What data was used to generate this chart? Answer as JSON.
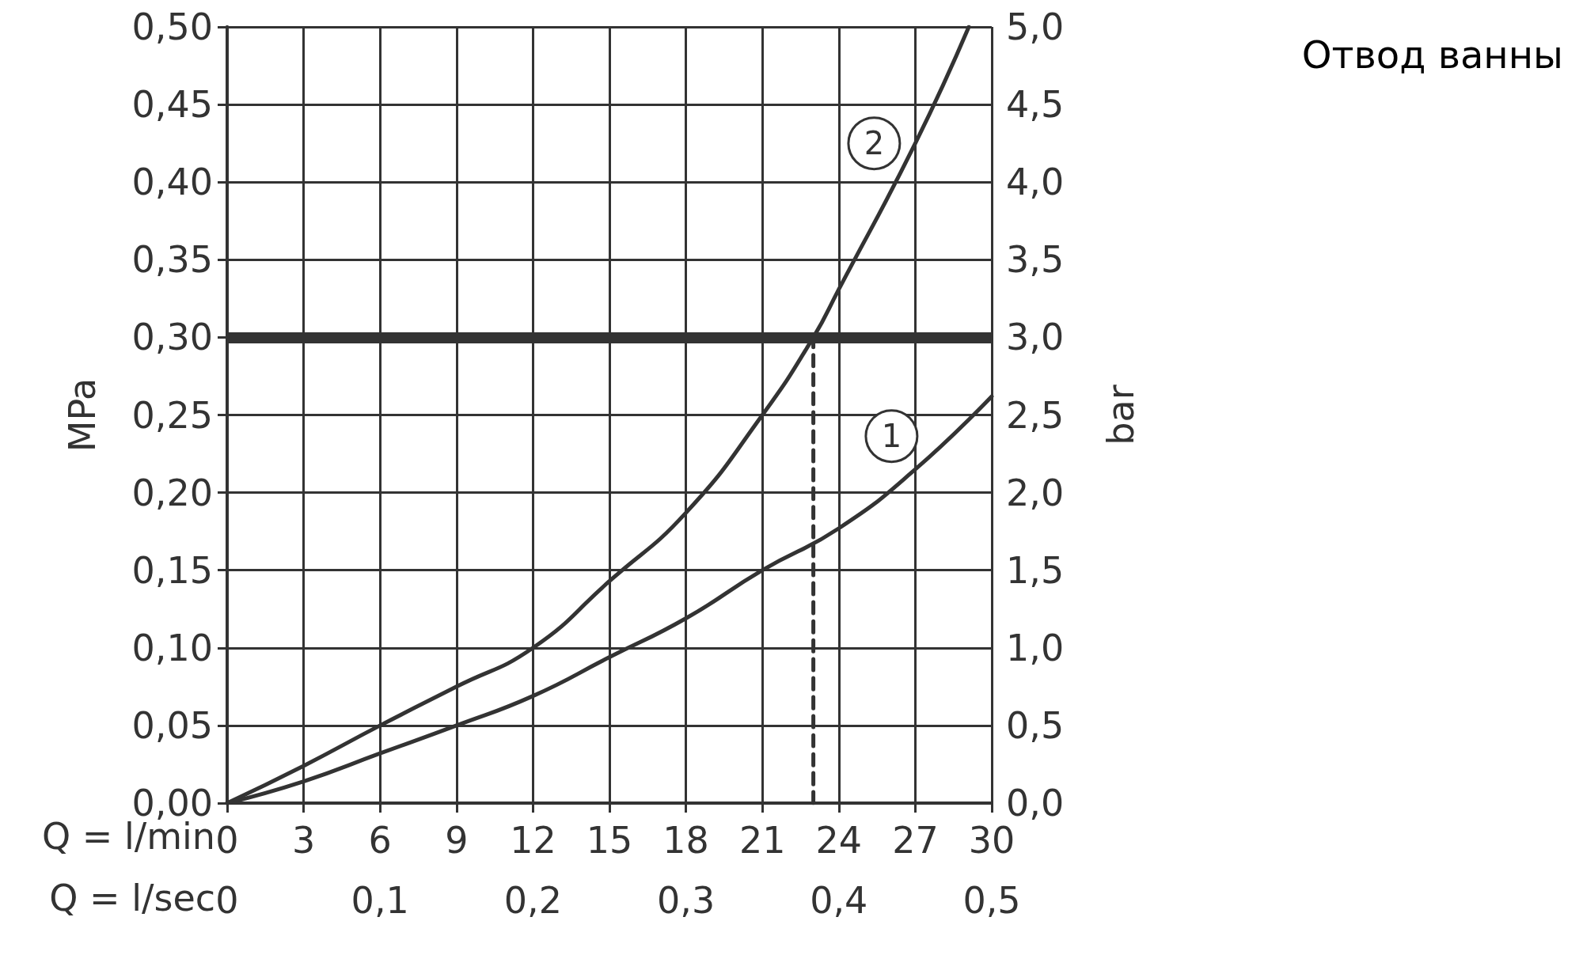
{
  "chart_data": {
    "type": "line",
    "title": "Отвод ванны",
    "xlabel": "Q = l/min",
    "x2label": "Q = l/sec",
    "ylabel": "MPa",
    "y2label": "bar",
    "xlim": [
      0,
      30
    ],
    "xticks": [
      0,
      3,
      6,
      9,
      12,
      15,
      18,
      21,
      24,
      27,
      30
    ],
    "x2lim": [
      0,
      0.5
    ],
    "x2ticks": [
      0,
      {
        "value": 0.1,
        "label": "0,1"
      },
      {
        "value": 0.2,
        "label": "0,2"
      },
      {
        "value": 0.3,
        "label": "0,3"
      },
      {
        "value": 0.4,
        "label": "0,4"
      },
      {
        "value": 0.5,
        "label": "0,5"
      }
    ],
    "ylim": [
      0,
      0.5
    ],
    "yticks": [
      {
        "value": 0,
        "label": "0,00"
      },
      {
        "value": 0.05,
        "label": "0,05"
      },
      {
        "value": 0.1,
        "label": "0,10"
      },
      {
        "value": 0.15,
        "label": "0,15"
      },
      {
        "value": 0.2,
        "label": "0,20"
      },
      {
        "value": 0.25,
        "label": "0,25"
      },
      {
        "value": 0.3,
        "label": "0,30"
      },
      {
        "value": 0.35,
        "label": "0,35"
      },
      {
        "value": 0.4,
        "label": "0,40"
      },
      {
        "value": 0.45,
        "label": "0,45"
      },
      {
        "value": 0.5,
        "label": "0,50"
      }
    ],
    "y2lim": [
      0,
      5
    ],
    "y2ticks": [
      {
        "value": 0,
        "label": "0,0"
      },
      {
        "value": 0.5,
        "label": "0,5"
      },
      {
        "value": 1,
        "label": "1,0"
      },
      {
        "value": 1.5,
        "label": "1,5"
      },
      {
        "value": 2,
        "label": "2,0"
      },
      {
        "value": 2.5,
        "label": "2,5"
      },
      {
        "value": 3,
        "label": "3,0"
      },
      {
        "value": 3.5,
        "label": "3,5"
      },
      {
        "value": 4,
        "label": "4,0"
      },
      {
        "value": 4.5,
        "label": "4,5"
      },
      {
        "value": 5,
        "label": "5,0"
      }
    ],
    "series": [
      {
        "name": "1",
        "color": "#333333",
        "x": [
          0,
          3,
          6,
          9,
          12,
          15,
          18,
          21,
          24,
          27,
          30
        ],
        "values": [
          0,
          0.014,
          0.032,
          0.05,
          0.069,
          0.094,
          0.119,
          0.15,
          0.177,
          0.215,
          0.262
        ]
      },
      {
        "name": "2",
        "color": "#333333",
        "x": [
          0,
          3,
          6,
          9,
          12,
          15,
          18,
          21,
          23,
          24,
          27,
          29.1
        ],
        "values": [
          0,
          0.024,
          0.05,
          0.075,
          0.1,
          0.143,
          0.187,
          0.25,
          0.3,
          0.331,
          0.425,
          0.5
        ]
      },
      {
        "color": "#333333",
        "line_style": "dashed",
        "x": [
          23,
          23
        ],
        "values": [
          0,
          0.3
        ]
      }
    ],
    "ref_lines": [
      {
        "axis": "y",
        "value": 0.3,
        "color": "#333333"
      }
    ],
    "grid": true,
    "legend": false,
    "marker": "none",
    "line_style": "solid"
  }
}
